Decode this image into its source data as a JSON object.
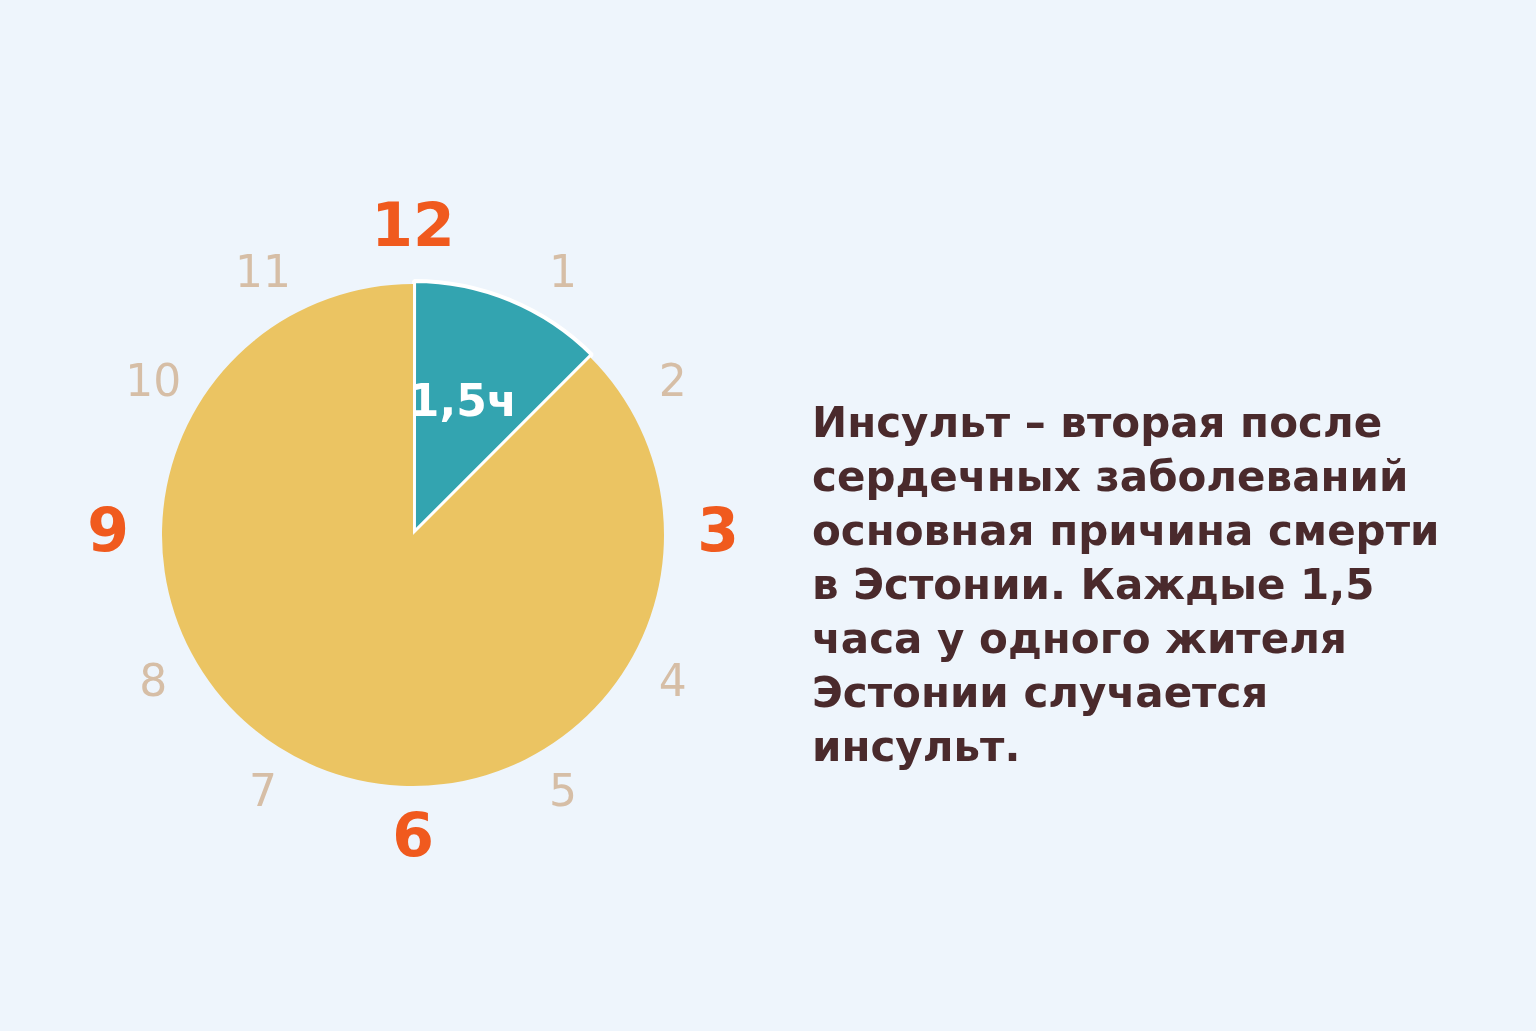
{
  "chart_data": {
    "type": "pie",
    "categories": [
      null,
      null
    ],
    "values": [
      1.5,
      10.5
    ],
    "colors": [
      "#33a4b0",
      "#ebc462"
    ],
    "value_labels": [
      "1,5ч",
      null
    ],
    "annotations": [
      "Инсульт – вторая после сердечных заболеваний основная причина смерти в Эстонии. Каждые 1,5 часа у одного жителя Эстонии случается инсульт.",
      "12",
      "1",
      "2",
      "3",
      "4",
      "5",
      "6",
      "7",
      "8",
      "9",
      "10",
      "11"
    ]
  }
}
